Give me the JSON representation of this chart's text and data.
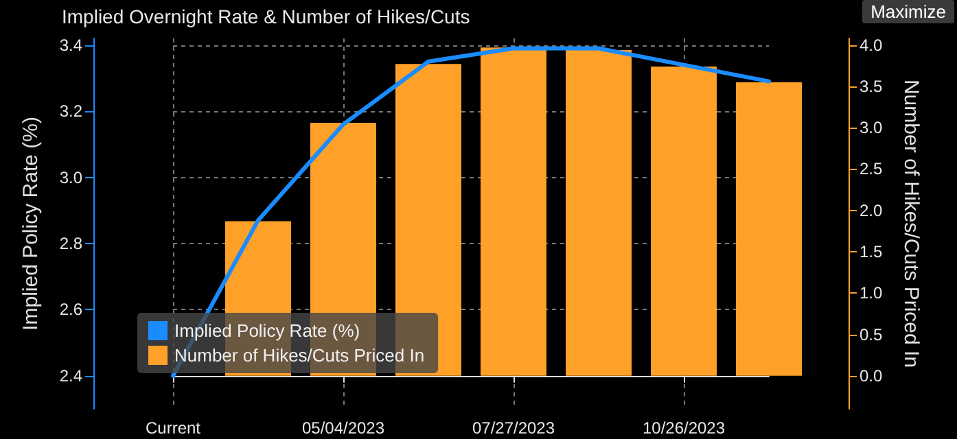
{
  "chart_data": {
    "type": "bar",
    "title": "Implied Overnight Rate & Number of Hikes/Cuts",
    "categories": [
      "Current",
      null,
      "05/04/2023",
      null,
      "07/27/2023",
      null,
      "10/26/2023",
      null
    ],
    "series": [
      {
        "name": "Implied Policy Rate (%)",
        "type": "line",
        "color": "#1a8cff",
        "values": [
          2.4,
          2.87,
          3.16,
          3.35,
          3.39,
          3.39,
          3.34,
          3.29
        ]
      },
      {
        "name": "Number of Hikes/Cuts Priced In",
        "axis": "y2",
        "color": "#ffa028",
        "values": [
          0,
          1.87,
          3.06,
          3.77,
          3.97,
          3.94,
          3.74,
          3.55
        ]
      }
    ],
    "ylabel": "Implied Policy Rate (%)",
    "y2label": "Number of Hikes/Cuts Priced In",
    "ylim": [
      2.3,
      3.42
    ],
    "yticks": [
      2.4,
      2.6,
      2.8,
      {
        "value": 3,
        "label": "3.0"
      },
      3.2,
      3.4
    ],
    "y2lim": [
      -0.4,
      4.08
    ],
    "y2ticks": [
      {
        "value": 0,
        "label": "0.0"
      },
      {
        "value": 0.5,
        "label": "0.5"
      },
      {
        "value": 1,
        "label": "1.0"
      },
      {
        "value": 1.5,
        "label": "1.5"
      },
      {
        "value": 2,
        "label": "2.0"
      },
      {
        "value": 2.5,
        "label": "2.5"
      },
      {
        "value": 3,
        "label": "3.0"
      },
      {
        "value": 3.5,
        "label": "3.5"
      },
      {
        "value": 4,
        "label": "4.0"
      }
    ],
    "annotations": [
      "Maximize"
    ],
    "grid": true,
    "legend": "bottom left",
    "marker": "none",
    "line_style": "solid"
  }
}
